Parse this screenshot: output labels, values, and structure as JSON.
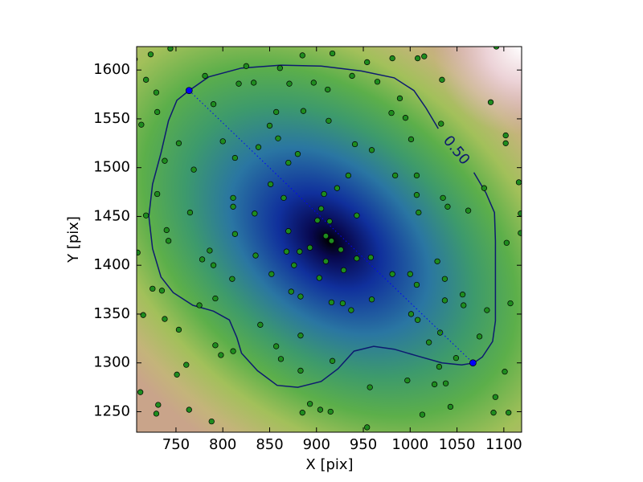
{
  "chart_data": {
    "type": "scatter",
    "xlabel": "X [pix]",
    "ylabel": "Y [pix]",
    "xlim": [
      708,
      1119
    ],
    "ylim": [
      1229,
      1624
    ],
    "xticks": [
      750,
      800,
      850,
      900,
      950,
      1000,
      1050,
      1100
    ],
    "yticks": [
      1250,
      1300,
      1350,
      1400,
      1450,
      1500,
      1550,
      1600
    ],
    "series": [
      {
        "color": "#1e8c1e",
        "x": [
          706,
          723,
          744,
          718,
          729,
          713,
          730,
          738,
          730,
          718,
          740,
          742,
          709,
          725,
          735,
          715,
          738,
          753,
          751,
          761,
          775,
          778,
          792,
          798,
          788,
          764,
          712,
          731,
          729,
          753,
          769,
          765,
          786,
          790,
          792,
          811,
          810,
          813,
          811,
          811,
          813,
          800,
          790,
          781,
          817,
          833,
          825,
          861,
          871,
          885,
          917,
          897,
          912,
          938,
          954,
          965,
          981,
          1008,
          1015,
          1034,
          989,
          980,
          995,
          1001,
          1033,
          941,
          959,
          913,
          886,
          857,
          850,
          838,
          859,
          880,
          870,
          851,
          865,
          834,
          835,
          852,
          876,
          873,
          840,
          857,
          862,
          883,
          883,
          885,
          893,
          904,
          915,
          917,
          916,
          928,
          937,
          959,
          958,
          943,
          929,
          926,
          934,
          943,
          922,
          908,
          905,
          901,
          914,
          910,
          916,
          910,
          903,
          882,
          893,
          870,
          868,
          883,
          1000,
          1007,
          981,
          984,
          1007,
          1007,
          1009,
          1035,
          1040,
          1062,
          1029,
          1037,
          1037,
          1032,
          1031,
          1020,
          1001,
          1008,
          1013,
          997,
          1026,
          1056,
          1057,
          1074,
          1082,
          1086,
          1079,
          1102,
          1102,
          1103,
          1116,
          1118,
          1118,
          1107,
          1101,
          1091,
          1089,
          1105,
          1049,
          1038,
          957,
          954,
          1043,
          1092
        ],
        "y": [
          1611,
          1616,
          1622,
          1590,
          1577,
          1544,
          1557,
          1507,
          1473,
          1451,
          1436,
          1425,
          1413,
          1376,
          1374,
          1349,
          1345,
          1334,
          1288,
          1298,
          1359,
          1406,
          1318,
          1308,
          1240,
          1252,
          1270,
          1257,
          1248,
          1525,
          1498,
          1454,
          1415,
          1400,
          1366,
          1312,
          1386,
          1432,
          1460,
          1469,
          1510,
          1527,
          1565,
          1594,
          1586,
          1587,
          1604,
          1602,
          1586,
          1615,
          1617,
          1587,
          1580,
          1594,
          1608,
          1588,
          1612,
          1612,
          1614,
          1590,
          1571,
          1556,
          1551,
          1529,
          1545,
          1524,
          1518,
          1548,
          1558,
          1557,
          1543,
          1521,
          1530,
          1514,
          1505,
          1483,
          1469,
          1453,
          1410,
          1391,
          1400,
          1373,
          1339,
          1317,
          1304,
          1328,
          1292,
          1249,
          1258,
          1252,
          1250,
          1302,
          1362,
          1361,
          1354,
          1365,
          1408,
          1407,
          1395,
          1416,
          1492,
          1451,
          1479,
          1473,
          1458,
          1446,
          1445,
          1430,
          1425,
          1404,
          1387,
          1414,
          1418,
          1435,
          1414,
          1368,
          1391,
          1380,
          1391,
          1492,
          1492,
          1472,
          1454,
          1469,
          1460,
          1456,
          1404,
          1386,
          1364,
          1331,
          1296,
          1321,
          1350,
          1344,
          1247,
          1282,
          1278,
          1370,
          1359,
          1327,
          1354,
          1567,
          1479,
          1533,
          1525,
          1423,
          1485,
          1453,
          1433,
          1361,
          1291,
          1265,
          1249,
          1249,
          1305,
          1279,
          1275,
          1234,
          1255,
          1624
        ]
      }
    ],
    "line": {
      "color": "#0000ff",
      "x": [
        764,
        1067
      ],
      "y": [
        1579,
        1300
      ]
    },
    "contour": {
      "label": "0.50",
      "color": "#0d1a70",
      "x": [
        764,
        785,
        820,
        862,
        905,
        948,
        983,
        1004,
        1017,
        1030,
        null,
        1068,
        1081,
        1090,
        1091,
        1091,
        1091,
        1088,
        1077,
        1068,
        1055,
        1034,
        1008,
        983,
        961,
        940,
        923,
        905,
        880,
        858,
        837,
        820,
        815,
        807,
        790,
        768,
        747,
        734,
        725,
        721,
        725,
        734,
        742,
        751,
        764
      ],
      "y": [
        1579,
        1593,
        1602,
        1605,
        1604,
        1599,
        1592,
        1579,
        1561,
        1540,
        null,
        1495,
        1474,
        1454,
        1425,
        1384,
        1343,
        1322,
        1306,
        1300,
        1298,
        1300,
        1307,
        1314,
        1317,
        1312,
        1294,
        1281,
        1275,
        1277,
        1292,
        1310,
        1326,
        1344,
        1353,
        1359,
        1372,
        1388,
        1417,
        1450,
        1483,
        1515,
        1548,
        1569,
        1579
      ]
    }
  }
}
